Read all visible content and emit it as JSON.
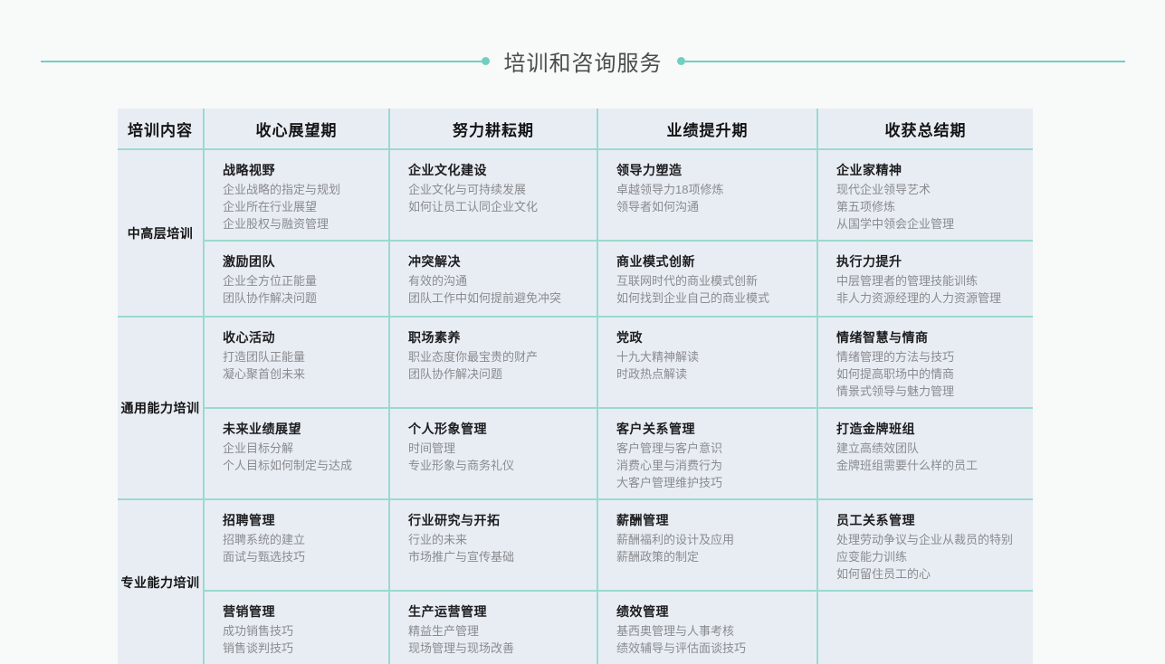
{
  "page": {
    "title": "培训和咨询服务",
    "colors": {
      "accent": "#6fcfc2",
      "table_border": "#9adacf",
      "cell_bg": "#e8edf4",
      "page_bg": "#f8f9f9",
      "title_color": "#4c4c4e"
    }
  },
  "table": {
    "headers": [
      "培训内容",
      "收心展望期",
      "努力耕耘期",
      "业绩提升期",
      "收获总结期"
    ],
    "groups": [
      {
        "label": "中高层培训",
        "rows": [
          [
            {
              "title": "战略视野",
              "lines": [
                "企业战略的指定与规划",
                "企业所在行业展望",
                "企业股权与融资管理"
              ]
            },
            {
              "title": "企业文化建设",
              "lines": [
                "企业文化与可持续发展",
                "如何让员工认同企业文化"
              ]
            },
            {
              "title": "领导力塑造",
              "lines": [
                "卓越领导力18项修炼",
                "领导者如何沟通"
              ]
            },
            {
              "title": "企业家精神",
              "lines": [
                "现代企业领导艺术",
                "第五项修炼",
                "从国学中领会企业管理"
              ]
            }
          ],
          [
            {
              "title": "激励团队",
              "lines": [
                "企业全方位正能量",
                "团队协作解决问题"
              ]
            },
            {
              "title": "冲突解决",
              "lines": [
                "有效的沟通",
                "团队工作中如何提前避免冲突"
              ]
            },
            {
              "title": "商业模式创新",
              "lines": [
                "互联网时代的商业模式创新",
                "如何找到企业自己的商业模式"
              ]
            },
            {
              "title": "执行力提升",
              "lines": [
                "中层管理者的管理技能训练",
                "非人力资源经理的人力资源管理"
              ]
            }
          ]
        ]
      },
      {
        "label": "通用能力培训",
        "rows": [
          [
            {
              "title": "收心活动",
              "lines": [
                "打造团队正能量",
                "凝心聚首创未来"
              ]
            },
            {
              "title": "职场素养",
              "lines": [
                "职业态度你最宝贵的财产",
                "团队协作解决问题"
              ]
            },
            {
              "title": "党政",
              "lines": [
                "十九大精神解读",
                "时政热点解读"
              ]
            },
            {
              "title": "情绪智慧与情商",
              "lines": [
                "情绪管理的方法与技巧",
                "如何提高职场中的情商",
                "情景式领导与魅力管理"
              ]
            }
          ],
          [
            {
              "title": "未来业绩展望",
              "lines": [
                "企业目标分解",
                "个人目标如何制定与达成"
              ]
            },
            {
              "title": "个人形象管理",
              "lines": [
                "时间管理",
                "专业形象与商务礼仪"
              ]
            },
            {
              "title": "客户关系管理",
              "lines": [
                "客户管理与客户意识",
                "消费心里与消费行为",
                "大客户管理维护技巧"
              ]
            },
            {
              "title": "打造金牌班组",
              "lines": [
                "建立高绩效团队",
                "金牌班组需要什么样的员工"
              ]
            }
          ]
        ]
      },
      {
        "label": "专业能力培训",
        "rows": [
          [
            {
              "title": "招聘管理",
              "lines": [
                "招聘系统的建立",
                "面试与甄选技巧"
              ]
            },
            {
              "title": "行业研究与开拓",
              "lines": [
                "行业的未来",
                "市场推广与宣传基础"
              ]
            },
            {
              "title": "薪酬管理",
              "lines": [
                "薪酬福利的设计及应用",
                "薪酬政策的制定"
              ]
            },
            {
              "title": "员工关系管理",
              "lines": [
                "处理劳动争议与企业从裁员的特别应变能力训练",
                "如何留住员工的心"
              ]
            }
          ],
          [
            {
              "title": "营销管理",
              "lines": [
                "成功销售技巧",
                "销售谈判技巧"
              ]
            },
            {
              "title": "生产运营管理",
              "lines": [
                "精益生产管理",
                "现场管理与现场改善"
              ]
            },
            {
              "title": "绩效管理",
              "lines": [
                "基西奥管理与人事考核",
                "绩效辅导与评估面谈技巧"
              ]
            },
            null
          ]
        ]
      }
    ]
  }
}
